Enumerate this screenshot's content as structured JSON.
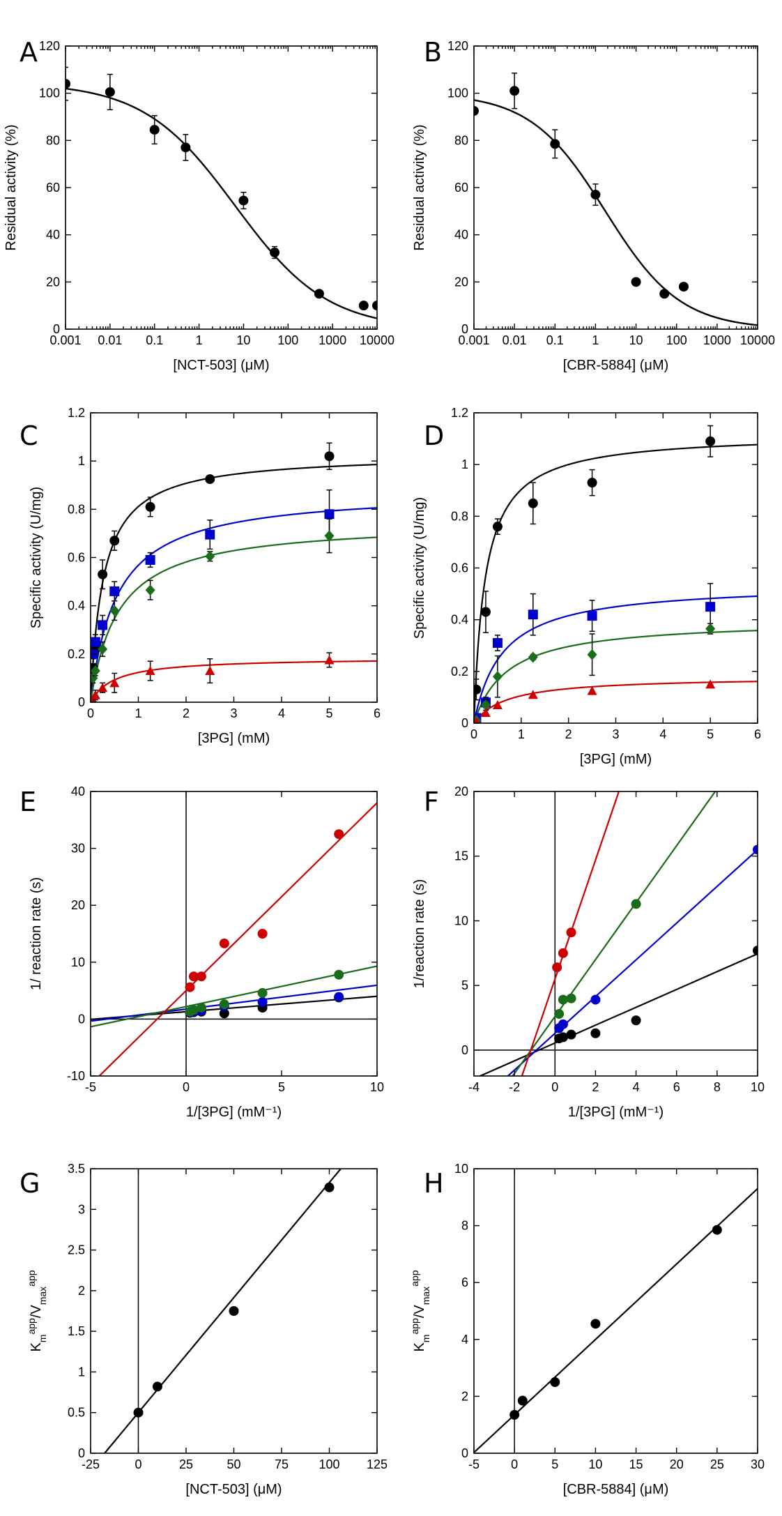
{
  "chart_data": [
    {
      "id": "A",
      "panel_label": "A",
      "type": "scatter",
      "xscale": "log",
      "xlabel": "[NCT-503] (μM)",
      "ylabel": "Residual activity (%)",
      "xlim": [
        0.001,
        10000
      ],
      "ylim": [
        0,
        120
      ],
      "xticks": [
        0.001,
        0.01,
        0.1,
        1,
        10,
        100,
        1000,
        10000
      ],
      "xtick_labels": [
        "0.001",
        "0.01",
        "0.1",
        "1",
        "10",
        "100",
        "1000",
        "10000"
      ],
      "yticks": [
        0,
        20,
        40,
        60,
        80,
        100,
        120
      ],
      "ytick_labels": [
        "0",
        "20",
        "40",
        "60",
        "80",
        "100",
        "120"
      ],
      "series": [
        {
          "name": "data",
          "color": "#000000",
          "marker": "circle",
          "x": [
            0.001,
            0.01,
            0.1,
            0.5,
            10,
            50,
            500,
            5000,
            10000
          ],
          "y": [
            104,
            100.5,
            84.5,
            77,
            54.5,
            32.5,
            15,
            10,
            10
          ],
          "err": [
            7,
            7.5,
            6,
            5.5,
            3.5,
            2.5,
            1,
            1,
            1
          ]
        }
      ],
      "fit": {
        "kind": "dose_response",
        "top": 104.5,
        "bottom": 0,
        "ic50": 6.5,
        "hill": 0.42,
        "color": "#000000"
      }
    },
    {
      "id": "B",
      "panel_label": "B",
      "type": "scatter",
      "xscale": "log",
      "xlabel": "[CBR-5884] (μM)",
      "ylabel": "Residual activity (%)",
      "xlim": [
        0.001,
        10000
      ],
      "ylim": [
        0,
        120
      ],
      "xticks": [
        0.001,
        0.01,
        0.1,
        1,
        10,
        100,
        1000,
        10000
      ],
      "xtick_labels": [
        "0.001",
        "0.01",
        "0.1",
        "1",
        "10",
        "100",
        "1000",
        "10000"
      ],
      "yticks": [
        0,
        20,
        40,
        60,
        80,
        100,
        120
      ],
      "ytick_labels": [
        "0",
        "20",
        "40",
        "60",
        "80",
        "100",
        "120"
      ],
      "series": [
        {
          "name": "data",
          "color": "#000000",
          "marker": "circle",
          "x": [
            0.001,
            0.01,
            0.1,
            1,
            10,
            50,
            150
          ],
          "y": [
            92.5,
            101,
            78.5,
            57,
            20,
            15,
            18
          ],
          "err": [
            0,
            7.5,
            6,
            4.5,
            0,
            0,
            0
          ]
        }
      ],
      "fit": {
        "kind": "dose_response",
        "top": 100,
        "bottom": 0,
        "ic50": 1.75,
        "hill": 0.47,
        "color": "#000000"
      }
    },
    {
      "id": "C",
      "panel_label": "C",
      "type": "scatter",
      "xlabel": "[3PG] (mM)",
      "ylabel": "Specific activity (U/mg)",
      "xlim": [
        0,
        6
      ],
      "ylim": [
        0,
        1.2
      ],
      "xticks": [
        0,
        1,
        2,
        3,
        4,
        5,
        6
      ],
      "xtick_labels": [
        "0",
        "1",
        "2",
        "3",
        "4",
        "5",
        "6"
      ],
      "yticks": [
        0,
        0.2,
        0.4,
        0.6,
        0.8,
        1,
        1.2
      ],
      "ytick_labels": [
        "0",
        "0.2",
        "0.4",
        "0.6",
        "0.8",
        "1",
        "1.2"
      ],
      "series": [
        {
          "name": "black",
          "color": "#000000",
          "marker": "circle",
          "x": [
            0,
            0.05,
            0.1,
            0.25,
            0.5,
            1.25,
            2.5,
            5
          ],
          "y": [
            0,
            0.14,
            0.22,
            0.53,
            0.67,
            0.81,
            0.925,
            1.02
          ],
          "err": [
            0,
            0.02,
            0.02,
            0.06,
            0.04,
            0.04,
            0.015,
            0.055
          ],
          "fit": {
            "vmax": 1.03,
            "km": 0.27
          }
        },
        {
          "name": "blue",
          "color": "#0000cc",
          "marker": "square",
          "x": [
            0,
            0.05,
            0.1,
            0.25,
            0.5,
            1.25,
            2.5,
            5
          ],
          "y": [
            0,
            0.2,
            0.25,
            0.32,
            0.46,
            0.59,
            0.695,
            0.78
          ],
          "err": [
            0,
            0.02,
            0.03,
            0.04,
            0.04,
            0.03,
            0.06,
            0.1
          ],
          "fit": {
            "vmax": 0.88,
            "km": 0.55
          }
        },
        {
          "name": "green",
          "color": "#1a6b1a",
          "marker": "diamond",
          "x": [
            0,
            0.05,
            0.1,
            0.25,
            0.5,
            1.25,
            2.5,
            5
          ],
          "y": [
            0,
            0.1,
            0.13,
            0.22,
            0.38,
            0.465,
            0.605,
            0.69
          ],
          "err": [
            0,
            0.02,
            0.02,
            0.03,
            0.04,
            0.04,
            0.02,
            0.07
          ],
          "fit": {
            "vmax": 0.75,
            "km": 0.58
          }
        },
        {
          "name": "red",
          "color": "#cc0000",
          "marker": "triangle",
          "x": [
            0,
            0.05,
            0.1,
            0.25,
            0.5,
            1.25,
            2.5,
            5
          ],
          "y": [
            0,
            0.01,
            0.03,
            0.06,
            0.08,
            0.13,
            0.13,
            0.175
          ],
          "err": [
            0,
            0.01,
            0.02,
            0.02,
            0.04,
            0.04,
            0.05,
            0.03
          ],
          "fit": {
            "vmax": 0.185,
            "km": 0.5
          }
        }
      ]
    },
    {
      "id": "D",
      "panel_label": "D",
      "type": "scatter",
      "xlabel": "[3PG] (mM)",
      "ylabel": "Specific activity (U/mg)",
      "xlim": [
        0,
        6
      ],
      "ylim": [
        0,
        1.2
      ],
      "xticks": [
        0,
        1,
        2,
        3,
        4,
        5,
        6
      ],
      "xtick_labels": [
        "0",
        "1",
        "2",
        "3",
        "4",
        "5",
        "6"
      ],
      "yticks": [
        0,
        0.2,
        0.4,
        0.6,
        0.8,
        1,
        1.2
      ],
      "ytick_labels": [
        "0",
        "0.2",
        "0.4",
        "0.6",
        "0.8",
        "1",
        "1.2"
      ],
      "series": [
        {
          "name": "black",
          "color": "#000000",
          "marker": "circle",
          "x": [
            0,
            0.05,
            0.25,
            0.5,
            1.25,
            2.5,
            5
          ],
          "y": [
            0,
            0.13,
            0.43,
            0.76,
            0.85,
            0.93,
            1.09
          ],
          "err": [
            0,
            0.04,
            0.08,
            0.03,
            0.08,
            0.05,
            0.06
          ],
          "fit": {
            "vmax": 1.12,
            "km": 0.24
          }
        },
        {
          "name": "blue",
          "color": "#0000cc",
          "marker": "square",
          "x": [
            0,
            0.05,
            0.25,
            0.5,
            1.25,
            2.5,
            5
          ],
          "y": [
            0,
            0.02,
            0.08,
            0.31,
            0.42,
            0.415,
            0.45
          ],
          "err": [
            0,
            0.01,
            0.02,
            0.03,
            0.08,
            0.06,
            0.09
          ],
          "fit": {
            "vmax": 0.54,
            "km": 0.6
          }
        },
        {
          "name": "green",
          "color": "#1a6b1a",
          "marker": "diamond",
          "x": [
            0,
            0.05,
            0.25,
            0.5,
            1.25,
            2.5,
            5
          ],
          "y": [
            0,
            0.01,
            0.07,
            0.18,
            0.255,
            0.265,
            0.365
          ],
          "err": [
            0,
            0.01,
            0.02,
            0.08,
            0.01,
            0.08,
            0.02
          ],
          "fit": {
            "vmax": 0.4,
            "km": 0.7
          }
        },
        {
          "name": "red",
          "color": "#cc0000",
          "marker": "triangle",
          "x": [
            0,
            0.05,
            0.25,
            0.5,
            1.25,
            2.5,
            5
          ],
          "y": [
            0,
            0.005,
            0.04,
            0.07,
            0.11,
            0.125,
            0.15
          ],
          "err": [
            0,
            0,
            0,
            0,
            0,
            0,
            0
          ],
          "fit": {
            "vmax": 0.18,
            "km": 0.7
          }
        }
      ]
    },
    {
      "id": "E",
      "panel_label": "E",
      "type": "scatter",
      "xlabel": "1/[3PG] (mM⁻¹)",
      "ylabel": "1/ reaction rate (s)",
      "xlim": [
        -5,
        10
      ],
      "ylim": [
        -10,
        40
      ],
      "xticks": [
        -5,
        0,
        5,
        10
      ],
      "xtick_labels": [
        "-5",
        "0",
        "5",
        "10"
      ],
      "yticks": [
        -10,
        0,
        10,
        20,
        30,
        40
      ],
      "ytick_labels": [
        "-10",
        "0",
        "10",
        "20",
        "30",
        "40"
      ],
      "refline_x": 0,
      "refline_y": 0,
      "series": [
        {
          "name": "black",
          "color": "#000000",
          "marker": "circle",
          "x": [
            0.2,
            0.4,
            0.8,
            2,
            4,
            8
          ],
          "y": [
            1.1,
            1.2,
            1.3,
            1.0,
            2.0,
            3.8
          ],
          "line": {
            "slope": 0.27,
            "intercept": 1.3
          }
        },
        {
          "name": "blue",
          "color": "#0000cc",
          "marker": "circle",
          "x": [
            0.2,
            0.4,
            0.8,
            2,
            4,
            8
          ],
          "y": [
            1.2,
            1.3,
            1.5,
            2.3,
            3.0,
            3.9
          ],
          "line": {
            "slope": 0.42,
            "intercept": 1.75
          }
        },
        {
          "name": "green",
          "color": "#1a6b1a",
          "marker": "circle",
          "x": [
            0.2,
            0.4,
            0.8,
            2,
            4,
            8
          ],
          "y": [
            1.3,
            1.6,
            2.0,
            2.6,
            4.6,
            7.8
          ],
          "line": {
            "slope": 0.71,
            "intercept": 2.2
          }
        },
        {
          "name": "red",
          "color": "#cc0000",
          "marker": "circle",
          "x": [
            0.2,
            0.4,
            0.8,
            2,
            4,
            8
          ],
          "y": [
            5.6,
            7.5,
            7.5,
            13.3,
            15.0,
            32.5
          ],
          "line": {
            "slope": 3.3,
            "intercept": 5.0
          }
        }
      ]
    },
    {
      "id": "F",
      "panel_label": "F",
      "type": "scatter",
      "xlabel": "1/[3PG] (mM⁻¹)",
      "ylabel": "1/reaction rate (s)",
      "xlim": [
        -4,
        10
      ],
      "ylim": [
        -2,
        20
      ],
      "xticks": [
        -4,
        -2,
        0,
        2,
        4,
        6,
        8,
        10
      ],
      "xtick_labels": [
        "-4",
        "-2",
        "0",
        "2",
        "4",
        "6",
        "8",
        "10"
      ],
      "yticks": [
        0,
        5,
        10,
        15,
        20
      ],
      "ytick_labels": [
        "0",
        "5",
        "10",
        "15",
        "20"
      ],
      "refline_x": 0,
      "refline_y": 0,
      "series": [
        {
          "name": "black",
          "color": "#000000",
          "marker": "circle",
          "x": [
            0.2,
            0.4,
            0.8,
            2,
            4,
            10
          ],
          "y": [
            0.9,
            1.0,
            1.2,
            1.3,
            2.3,
            7.7
          ],
          "line": {
            "slope": 0.69,
            "intercept": 0.55
          }
        },
        {
          "name": "blue",
          "color": "#0000cc",
          "marker": "circle",
          "x": [
            0.2,
            0.4,
            2,
            10
          ],
          "y": [
            1.7,
            2.0,
            3.9,
            15.5
          ],
          "line": {
            "slope": 1.42,
            "intercept": 1.3
          }
        },
        {
          "name": "green",
          "color": "#1a6b1a",
          "marker": "circle",
          "x": [
            0.2,
            0.4,
            0.8,
            4
          ],
          "y": [
            2.8,
            3.9,
            4.0,
            11.3
          ],
          "line": {
            "slope": 2.2,
            "intercept": 2.6
          }
        },
        {
          "name": "red",
          "color": "#cc0000",
          "marker": "circle",
          "x": [
            0.1,
            0.4,
            0.8
          ],
          "y": [
            6.4,
            7.5,
            9.1
          ],
          "line": {
            "slope": 4.6,
            "intercept": 5.5
          }
        }
      ]
    },
    {
      "id": "G",
      "panel_label": "G",
      "type": "scatter",
      "xlabel": "[NCT-503] (μM)",
      "ylabel": "Km app/Vmax app",
      "ylabel_parts": {
        "k": "K",
        "m": "m",
        "app1": "app",
        "sep": "/V",
        "max": "max",
        "app2": "app"
      },
      "xlim": [
        -25,
        125
      ],
      "ylim": [
        0,
        3.5
      ],
      "xticks": [
        -25,
        0,
        25,
        50,
        75,
        100,
        125
      ],
      "xtick_labels": [
        "-25",
        "0",
        "25",
        "50",
        "75",
        "100",
        "125"
      ],
      "yticks": [
        0,
        0.5,
        1,
        1.5,
        2,
        2.5,
        3,
        3.5
      ],
      "ytick_labels": [
        "0",
        "0.5",
        "1",
        "1.5",
        "2",
        "2.5",
        "3",
        "3.5"
      ],
      "refline_x": 0,
      "series": [
        {
          "name": "data",
          "color": "#000000",
          "marker": "circle",
          "x": [
            0,
            10,
            50,
            100
          ],
          "y": [
            0.5,
            0.82,
            1.75,
            3.27
          ],
          "line": {
            "slope": 0.0283,
            "intercept": 0.5
          }
        }
      ]
    },
    {
      "id": "H",
      "panel_label": "H",
      "type": "scatter",
      "xlabel": "[CBR-5884] (μM)",
      "ylabel": "Km app/Vmax app",
      "ylabel_parts": {
        "k": "K",
        "m": "m",
        "app1": "app",
        "sep": "/V",
        "max": "max",
        "app2": "app"
      },
      "xlim": [
        -5,
        30
      ],
      "ylim": [
        0,
        10
      ],
      "xticks": [
        -5,
        0,
        5,
        10,
        15,
        20,
        25,
        30
      ],
      "xtick_labels": [
        "-5",
        "0",
        "5",
        "10",
        "15",
        "20",
        "25",
        "30"
      ],
      "yticks": [
        0,
        2,
        4,
        6,
        8,
        10
      ],
      "ytick_labels": [
        "0",
        "2",
        "4",
        "6",
        "8",
        "10"
      ],
      "refline_x": 0,
      "series": [
        {
          "name": "data",
          "color": "#000000",
          "marker": "circle",
          "x": [
            0,
            1,
            5,
            10,
            25
          ],
          "y": [
            1.35,
            1.85,
            2.5,
            4.55,
            7.85
          ],
          "line": {
            "slope": 0.265,
            "intercept": 1.35
          }
        }
      ]
    }
  ]
}
